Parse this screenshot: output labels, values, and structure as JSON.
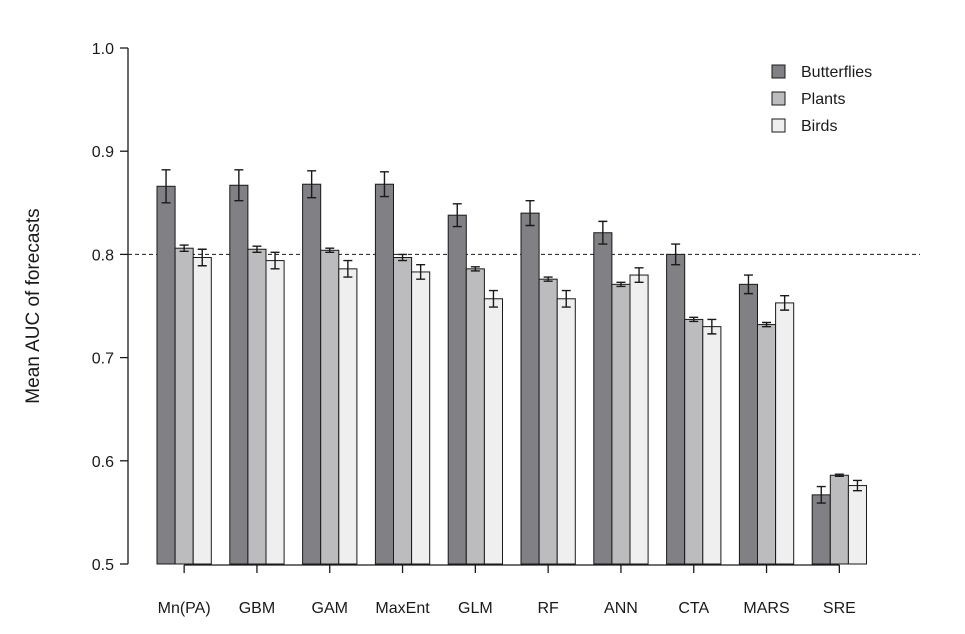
{
  "chart_data": {
    "type": "bar",
    "title": "",
    "xlabel": "",
    "ylabel": "Mean AUC of forecasts",
    "ylim": [
      0.5,
      1.0
    ],
    "yticks": [
      "0.5",
      "0.6",
      "0.7",
      "0.8",
      "0.9",
      "1.0"
    ],
    "reference_line": 0.8,
    "legend_position": "top-right",
    "categories": [
      "Mn(PA)",
      "GBM",
      "GAM",
      "MaxEnt",
      "GLM",
      "RF",
      "ANN",
      "CTA",
      "MARS",
      "SRE"
    ],
    "series": [
      {
        "name": "Butterflies",
        "color": "#808085",
        "values": [
          0.866,
          0.867,
          0.868,
          0.868,
          0.838,
          0.84,
          0.821,
          0.8,
          0.771,
          0.567
        ],
        "errors": [
          0.016,
          0.015,
          0.013,
          0.012,
          0.011,
          0.012,
          0.011,
          0.01,
          0.009,
          0.008
        ]
      },
      {
        "name": "Plants",
        "color": "#bcbcbf",
        "values": [
          0.806,
          0.805,
          0.804,
          0.797,
          0.786,
          0.776,
          0.771,
          0.737,
          0.732,
          0.586
        ],
        "errors": [
          0.003,
          0.003,
          0.002,
          0.003,
          0.002,
          0.002,
          0.002,
          0.002,
          0.002,
          0.001
        ]
      },
      {
        "name": "Birds",
        "color": "#efefef",
        "values": [
          0.797,
          0.794,
          0.786,
          0.783,
          0.757,
          0.757,
          0.78,
          0.73,
          0.753,
          0.576
        ],
        "errors": [
          0.008,
          0.008,
          0.008,
          0.007,
          0.008,
          0.008,
          0.007,
          0.007,
          0.007,
          0.005
        ]
      }
    ]
  }
}
